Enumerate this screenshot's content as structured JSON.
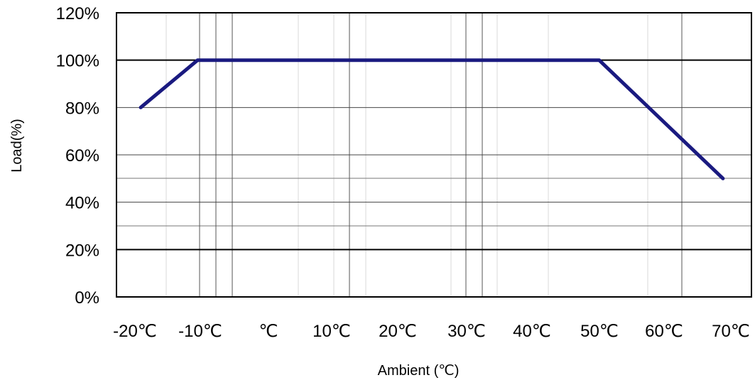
{
  "chart_data": {
    "type": "line",
    "title": "",
    "xlabel": "Ambient (℃)",
    "ylabel": "Load(%)",
    "x_ticks": [
      "-20℃",
      "-10℃",
      "℃",
      "10℃",
      "20℃",
      "30℃",
      "40℃",
      "50℃",
      "60℃",
      "70℃"
    ],
    "y_ticks": [
      "0%",
      "20%",
      "40%",
      "60%",
      "80%",
      "100%",
      "120%"
    ],
    "xlim": [
      -20,
      70
    ],
    "ylim": [
      0,
      120
    ],
    "grid": true,
    "series": [
      {
        "color": "#1a1a80",
        "points": [
          {
            "x": -18.5,
            "y": 80
          },
          {
            "x": -10,
            "y": 100
          },
          {
            "x": 50,
            "y": 100
          },
          {
            "x": 68.5,
            "y": 50
          }
        ]
      }
    ]
  }
}
